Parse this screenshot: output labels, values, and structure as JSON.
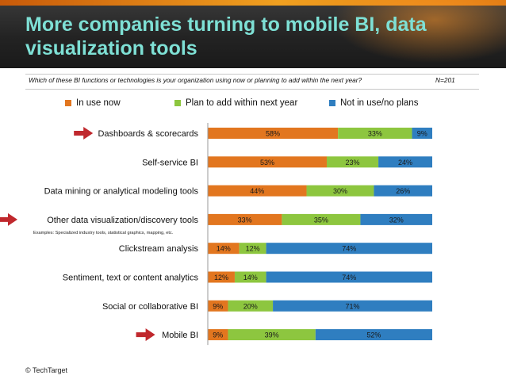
{
  "title": "More companies turning to mobile BI, data visualization tools",
  "question": "Which of these BI functions or technologies is your organization using now or planning to add within the next year?",
  "sample_size": "N=201",
  "copyright": "© TechTarget",
  "colors": {
    "in_use": "#e2761f",
    "plan": "#8dc63f",
    "not_in_use": "#2f7ec0",
    "arrow": "#c0282d",
    "title": "#7ee0d5"
  },
  "chart_data": {
    "type": "bar",
    "orientation": "horizontal",
    "stacked": true,
    "categories": [
      "Dashboards & scorecards",
      "Self-service BI",
      "Data mining or analytical modeling tools",
      "Other data visualization/discovery tools",
      "Clickstream analysis",
      "Sentiment, text or content analytics",
      "Social or collaborative BI",
      "Mobile BI"
    ],
    "category_notes": [
      "",
      "",
      "",
      "Examples: Specialized industry tools, statistical graphics, mapping, etc.",
      "",
      "",
      "",
      ""
    ],
    "highlighted": [
      true,
      false,
      false,
      true,
      false,
      false,
      false,
      true
    ],
    "series": [
      {
        "name": "In use now",
        "values": [
          58,
          53,
          44,
          33,
          14,
          12,
          9,
          9
        ]
      },
      {
        "name": "Plan to add within next year",
        "values": [
          33,
          23,
          30,
          35,
          12,
          14,
          20,
          39
        ]
      },
      {
        "name": "Not in use/no plans",
        "values": [
          9,
          24,
          26,
          32,
          74,
          74,
          71,
          52
        ]
      }
    ],
    "data_labels": [
      [
        "58%",
        "33%",
        "9%"
      ],
      [
        "53%",
        "23%",
        "24%"
      ],
      [
        "44%",
        "30%",
        "26%"
      ],
      [
        "33%",
        "35%",
        "32%"
      ],
      [
        "14%",
        "12%",
        "74%"
      ],
      [
        "12%",
        "14%",
        "74%"
      ],
      [
        "9%",
        "20%",
        "71%"
      ],
      [
        "9%",
        "39%",
        "52%"
      ]
    ],
    "xlim": [
      0,
      100
    ],
    "legend_position": "top"
  }
}
